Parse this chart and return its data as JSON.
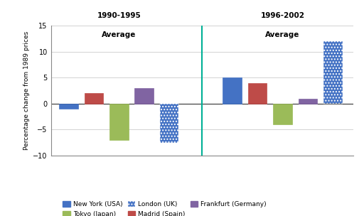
{
  "title_left": "1990-1995",
  "title_right": "1996-2002",
  "subtitle": "Average",
  "ylabel": "Percentage change from 1989 prices",
  "ylim": [
    -10,
    15
  ],
  "yticks": [
    -10,
    -5,
    0,
    5,
    10,
    15
  ],
  "cities": [
    "New York (USA)",
    "Madrid (Spain)",
    "Tokyo (Japan)",
    "Frankfurt (Germany)",
    "London (UK)"
  ],
  "period1_values": [
    -1,
    2,
    -7,
    3,
    -7.5
  ],
  "period2_values": [
    5,
    4,
    -4,
    1,
    12
  ],
  "colors": {
    "New York (USA)": "#4472C4",
    "Madrid (Spain)": "#BE4B48",
    "Tokyo (Japan)": "#9BBB59",
    "Frankfurt (Germany)": "#8064A2",
    "London (UK)": "#4472C4"
  },
  "london_dotted": true,
  "divider_color": "#00B096",
  "background_color": "#FFFFFF",
  "grid_color": "#C0C0C0"
}
